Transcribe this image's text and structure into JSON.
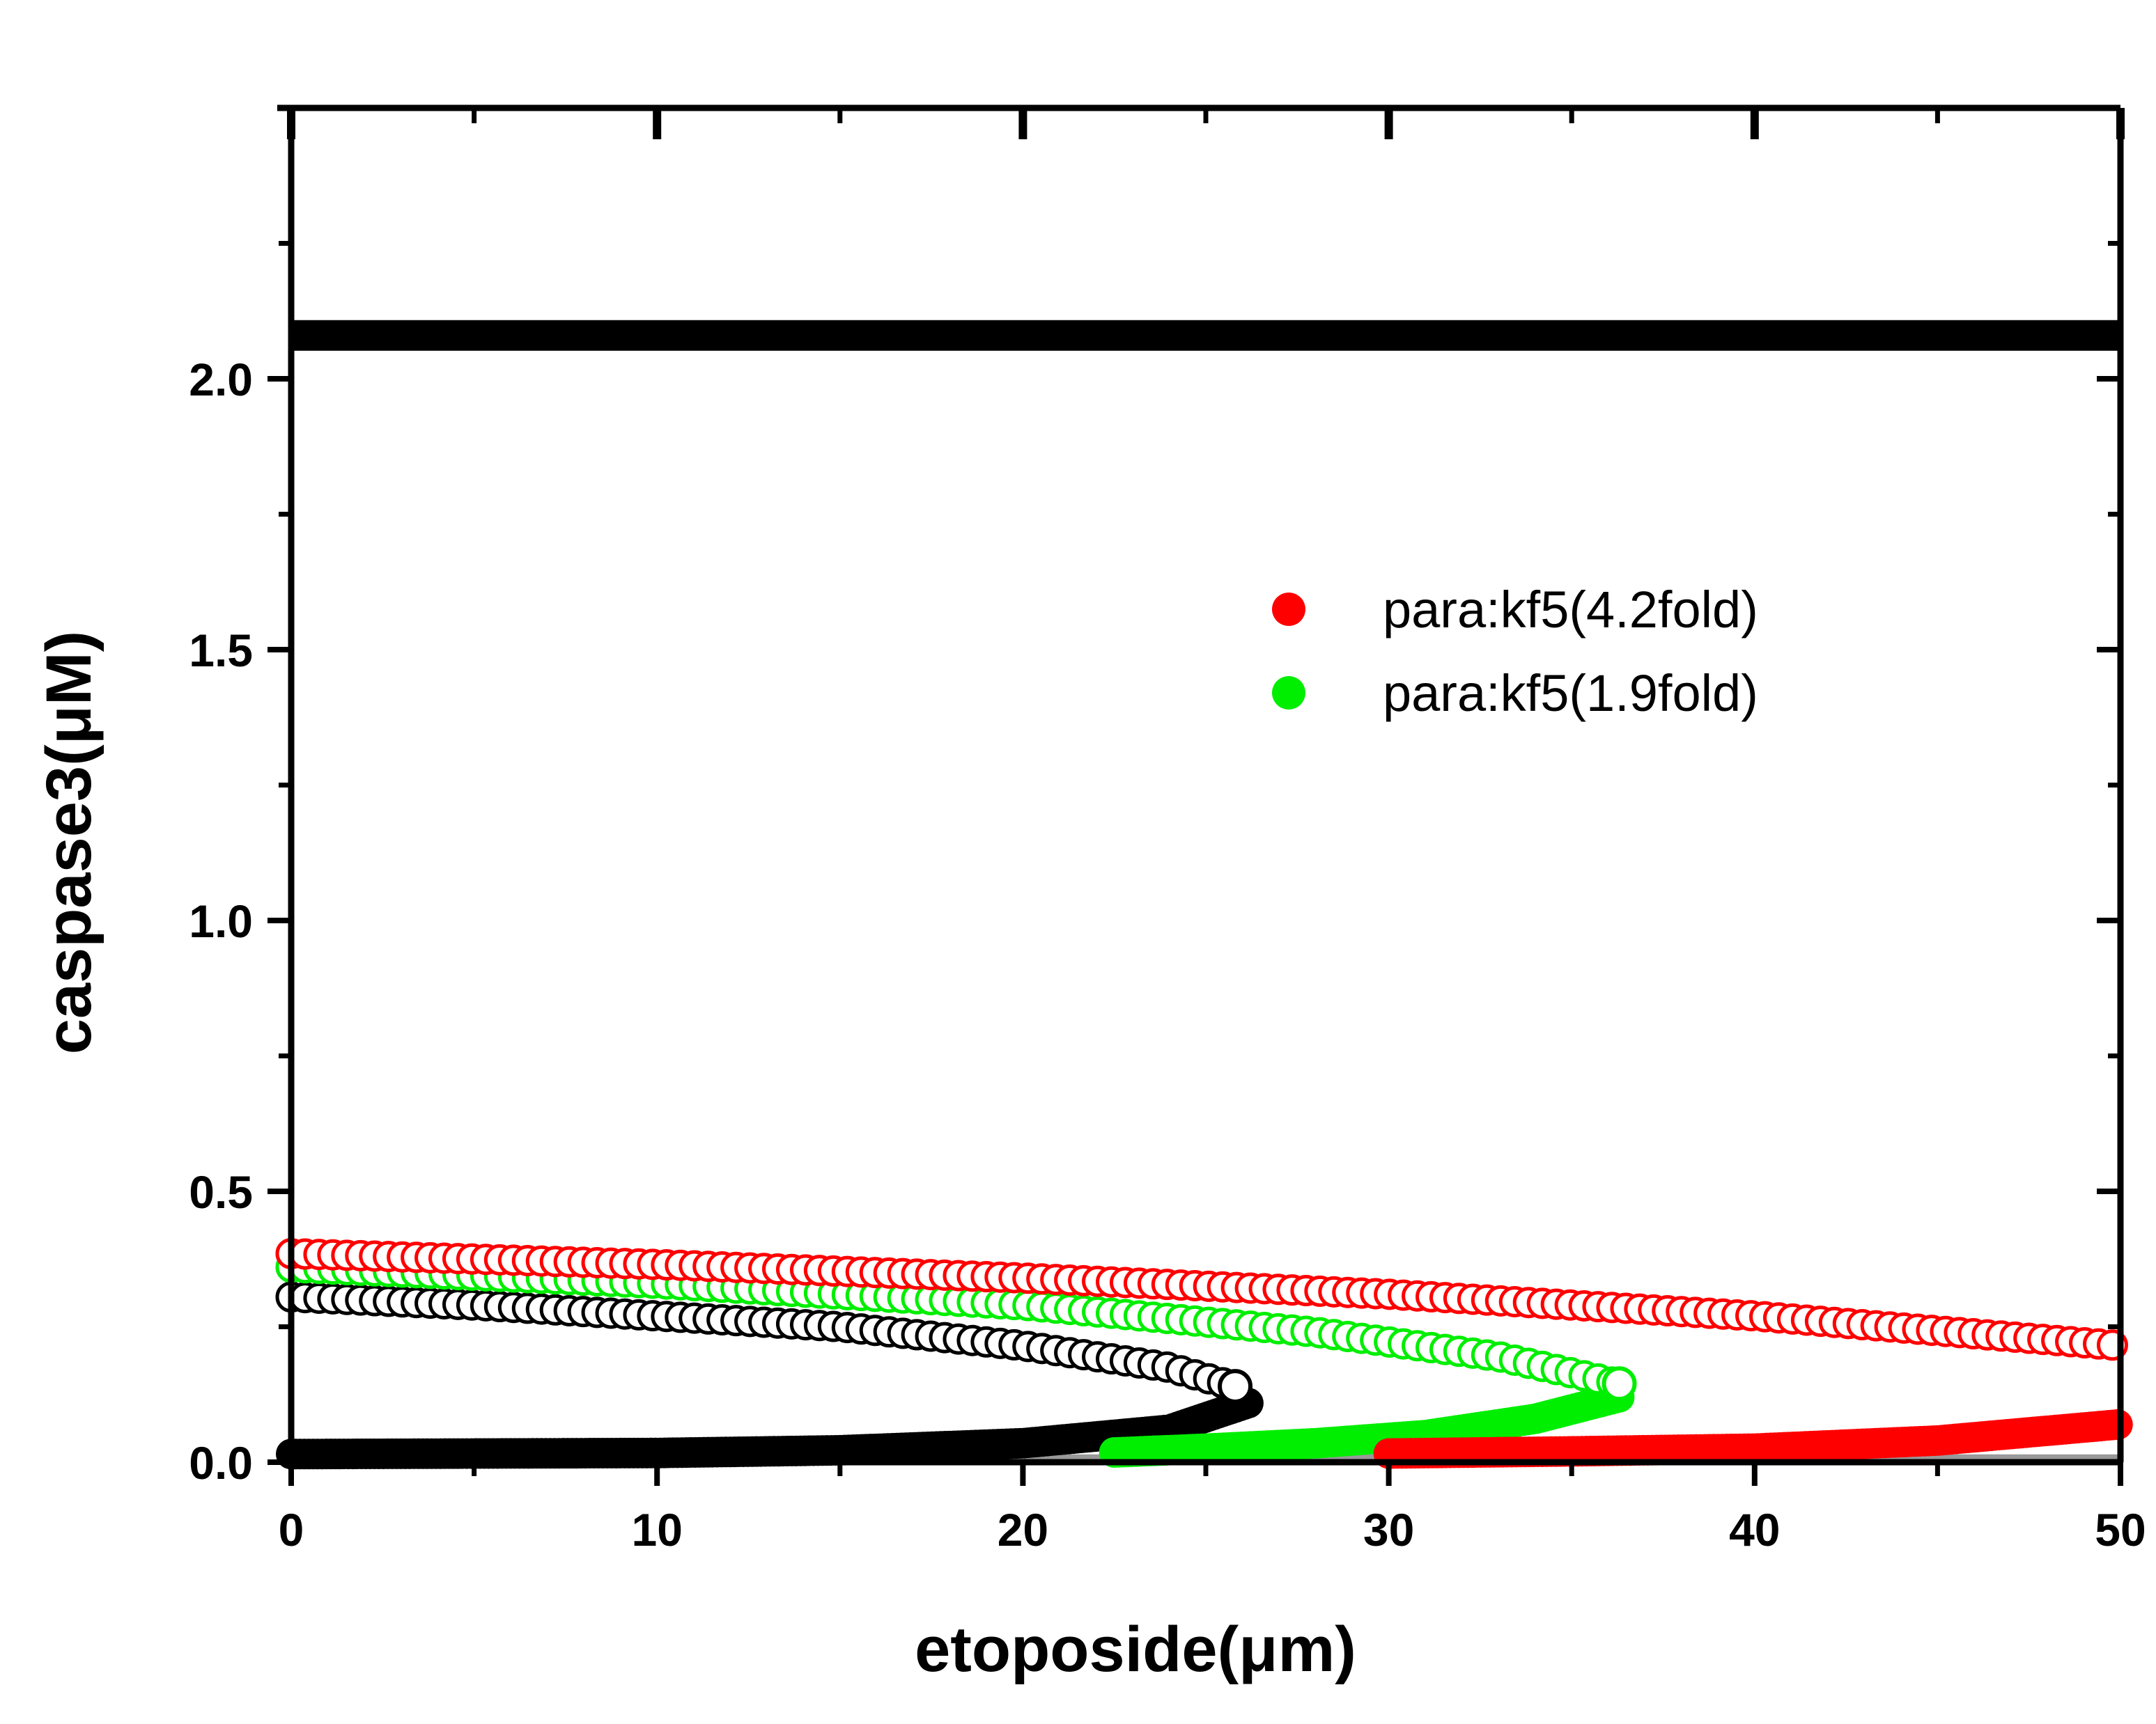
{
  "chart_data": {
    "type": "scatter",
    "title": "",
    "xlabel": "etoposide(μm)",
    "ylabel": "caspase3(μM)",
    "xlim": [
      0,
      50
    ],
    "ylim": [
      0,
      2.5
    ],
    "x_ticks": [
      {
        "value": 0,
        "label": "0"
      },
      {
        "value": 10,
        "label": "10"
      },
      {
        "value": 20,
        "label": "20"
      },
      {
        "value": 30,
        "label": "30"
      },
      {
        "value": 40,
        "label": "40"
      },
      {
        "value": 50,
        "label": "50"
      }
    ],
    "y_ticks": [
      {
        "value": 0,
        "label": "0.0"
      },
      {
        "value": 0.5,
        "label": "0.5"
      },
      {
        "value": 1.0,
        "label": "1.0"
      },
      {
        "value": 1.5,
        "label": "1.5"
      },
      {
        "value": 2.0,
        "label": "2.0"
      }
    ],
    "grid": false,
    "legend_position": "upper-right",
    "legend": [
      {
        "label": "para:kf5(4.2fold)",
        "color": "#ff0000"
      },
      {
        "label": "para:kf5(1.9fold)",
        "color": "#00ee00"
      }
    ],
    "series": [
      {
        "color": "#000000",
        "high_branch": {
          "x_range": [
            0,
            50
          ],
          "y": 2.08
        },
        "low_branch": {
          "x": [
            0,
            10,
            15,
            20,
            24,
            26.2
          ],
          "y": [
            0.015,
            0.017,
            0.022,
            0.035,
            0.06,
            0.11
          ]
        },
        "unstable_branch": {
          "x": [
            0,
            5,
            10,
            15,
            20,
            24,
            25.8
          ],
          "y": [
            0.305,
            0.29,
            0.27,
            0.25,
            0.215,
            0.175,
            0.14
          ]
        }
      },
      {
        "name": "para:kf5(1.9fold)",
        "color": "#00ee00",
        "low_branch": {
          "x": [
            22.5,
            25,
            28,
            31,
            34,
            36.3
          ],
          "y": [
            0.018,
            0.025,
            0.035,
            0.05,
            0.08,
            0.12
          ]
        },
        "unstable_branch": {
          "x": [
            0,
            10,
            20,
            28,
            33,
            36.3
          ],
          "y": [
            0.36,
            0.33,
            0.29,
            0.24,
            0.195,
            0.145
          ]
        }
      },
      {
        "name": "para:kf5(4.2fold)",
        "color": "#ff0000",
        "low_branch": {
          "x": [
            30,
            35,
            40,
            45,
            50
          ],
          "y": [
            0.016,
            0.02,
            0.025,
            0.04,
            0.07
          ]
        },
        "unstable_branch": {
          "x": [
            0,
            10,
            20,
            30,
            40,
            50
          ],
          "y": [
            0.385,
            0.365,
            0.34,
            0.31,
            0.27,
            0.215
          ]
        }
      }
    ]
  }
}
